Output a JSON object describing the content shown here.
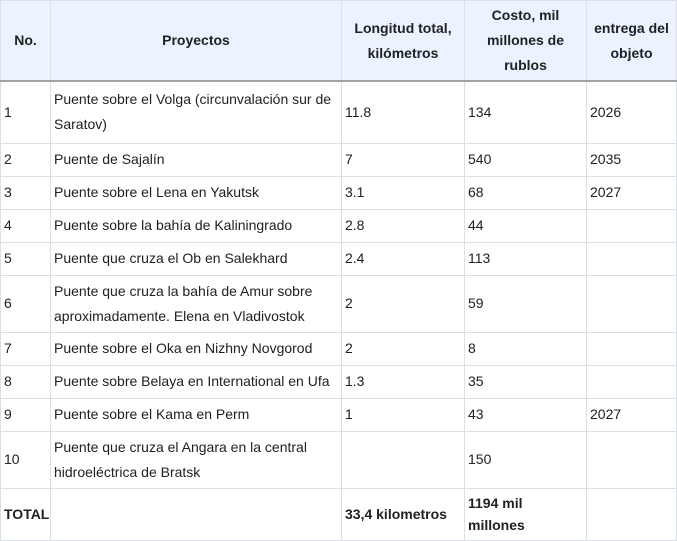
{
  "table": {
    "headers": {
      "no": "No.",
      "project": "Proyectos",
      "length": "Longitud total, kilómetros",
      "cost": "Costo, mil millones de rublos",
      "delivery": "entrega del objeto"
    },
    "rows": [
      {
        "no": "1",
        "project": "Puente sobre el Volga (circunvalación sur de Saratov)",
        "length": "11.8",
        "cost": "134",
        "year": "2026"
      },
      {
        "no": "2",
        "project": "Puente de Sajalín",
        "length": "7",
        "cost": "540",
        "year": "2035"
      },
      {
        "no": "3",
        "project": "Puente sobre el Lena en Yakutsk",
        "length": "3.1",
        "cost": "68",
        "year": "2027"
      },
      {
        "no": "4",
        "project": "Puente sobre la bahía de Kaliningrado",
        "length": "2.8",
        "cost": "44",
        "year": ""
      },
      {
        "no": "5",
        "project": "Puente que cruza el Ob en Salekhard",
        "length": "2.4",
        "cost": "113",
        "year": ""
      },
      {
        "no": "6",
        "project": "Puente que cruza la bahía de Amur sobre aproximadamente. Elena en Vladivostok",
        "length": "2",
        "cost": "59",
        "year": ""
      },
      {
        "no": "7",
        "project": "Puente sobre el Oka en Nizhny Novgorod",
        "length": "2",
        "cost": "8",
        "year": ""
      },
      {
        "no": "8",
        "project": "Puente sobre Belaya en International en Ufa",
        "length": "1.3",
        "cost": "35",
        "year": ""
      },
      {
        "no": "9",
        "project": "Puente sobre el Kama en Perm",
        "length": "1",
        "cost": "43",
        "year": "2027"
      },
      {
        "no": "10",
        "project": "Puente que cruza el Angara en la central hidroeléctrica de Bratsk",
        "length": "",
        "cost": "150",
        "year": ""
      }
    ],
    "total": {
      "label": "TOTAL",
      "project": "",
      "length": "33,4 kilometros",
      "cost": "1194 mil millones",
      "year": ""
    }
  }
}
